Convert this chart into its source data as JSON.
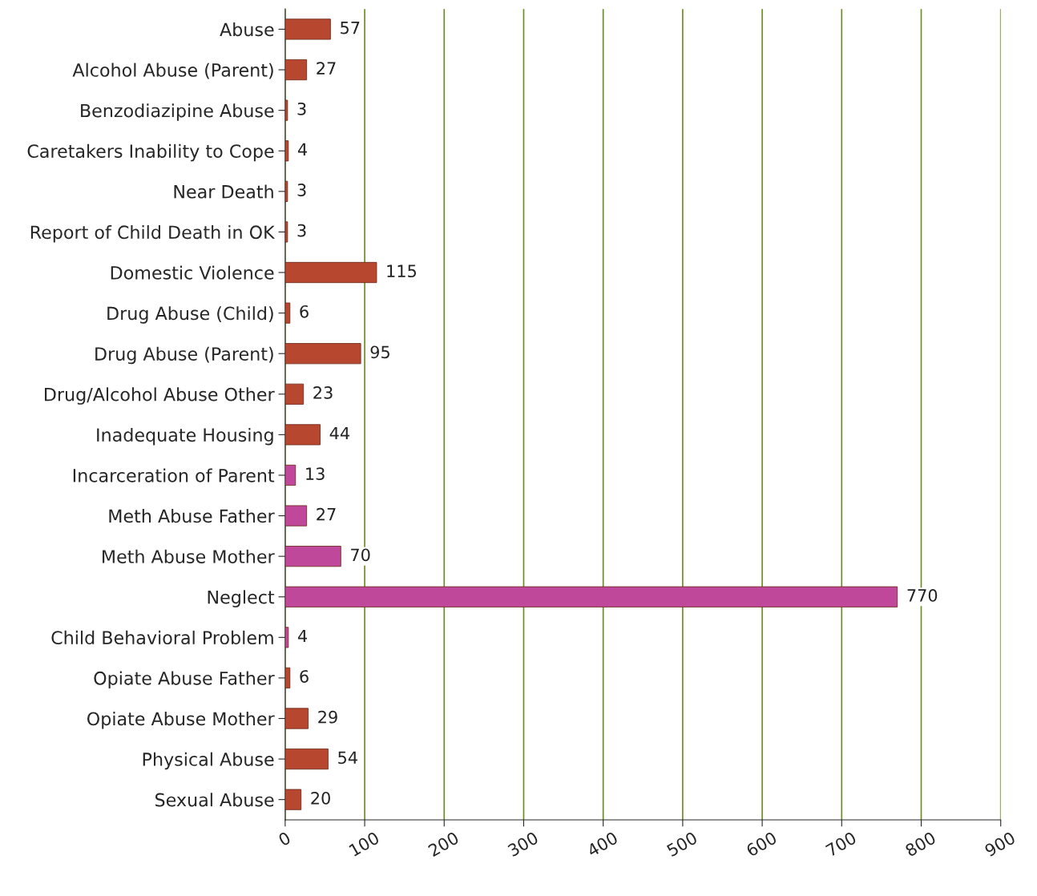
{
  "chart_data": {
    "type": "bar",
    "orientation": "horizontal",
    "categories": [
      "Abuse",
      "Alcohol Abuse (Parent)",
      "Benzodiazipine Abuse",
      "Caretakers Inability to Cope",
      "Near Death",
      "Report of Child Death in OK",
      "Domestic Violence",
      "Drug Abuse (Child)",
      "Drug Abuse (Parent)",
      "Drug/Alcohol Abuse Other",
      "Inadequate Housing",
      "Incarceration of Parent",
      "Meth Abuse Father",
      "Meth Abuse Mother",
      "Neglect",
      "Child Behavioral Problem",
      "Opiate Abuse Father",
      "Opiate Abuse Mother",
      "Physical Abuse",
      "Sexual Abuse"
    ],
    "values": [
      57,
      27,
      3,
      4,
      3,
      3,
      115,
      6,
      95,
      23,
      44,
      13,
      27,
      70,
      770,
      4,
      6,
      29,
      54,
      20
    ],
    "colors": [
      "#b8472f",
      "#b8472f",
      "#b8472f",
      "#b8472f",
      "#b8472f",
      "#b8472f",
      "#b8472f",
      "#b8472f",
      "#b8472f",
      "#b8472f",
      "#b8472f",
      "#c0489a",
      "#c0489a",
      "#c0489a",
      "#c0489a",
      "#c0489a",
      "#b8472f",
      "#b8472f",
      "#b8472f",
      "#b8472f"
    ],
    "xlim": [
      0,
      900
    ],
    "xticks": [
      0,
      100,
      200,
      300,
      400,
      500,
      600,
      700,
      800,
      900
    ],
    "grid": "x",
    "data_labels": true
  }
}
